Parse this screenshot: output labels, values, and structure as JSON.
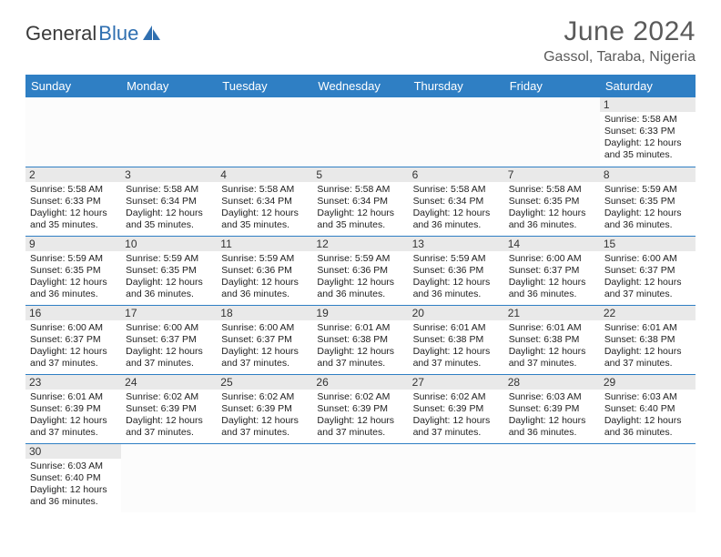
{
  "brand": {
    "part1": "General",
    "part2": "Blue"
  },
  "title": "June 2024",
  "location": "Gassol, Taraba, Nigeria",
  "colors": {
    "header_bg": "#2f7fc4",
    "header_text": "#ffffff",
    "daynum_bg": "#e9e9e9",
    "row_border": "#2f7fc4",
    "logo_blue": "#2f6fb0",
    "title_color": "#5a5a5a"
  },
  "dow": [
    "Sunday",
    "Monday",
    "Tuesday",
    "Wednesday",
    "Thursday",
    "Friday",
    "Saturday"
  ],
  "weeks": [
    [
      null,
      null,
      null,
      null,
      null,
      null,
      {
        "n": "1",
        "sr": "5:58 AM",
        "ss": "6:33 PM",
        "dl": "12 hours and 35 minutes."
      }
    ],
    [
      {
        "n": "2",
        "sr": "5:58 AM",
        "ss": "6:33 PM",
        "dl": "12 hours and 35 minutes."
      },
      {
        "n": "3",
        "sr": "5:58 AM",
        "ss": "6:34 PM",
        "dl": "12 hours and 35 minutes."
      },
      {
        "n": "4",
        "sr": "5:58 AM",
        "ss": "6:34 PM",
        "dl": "12 hours and 35 minutes."
      },
      {
        "n": "5",
        "sr": "5:58 AM",
        "ss": "6:34 PM",
        "dl": "12 hours and 35 minutes."
      },
      {
        "n": "6",
        "sr": "5:58 AM",
        "ss": "6:34 PM",
        "dl": "12 hours and 36 minutes."
      },
      {
        "n": "7",
        "sr": "5:58 AM",
        "ss": "6:35 PM",
        "dl": "12 hours and 36 minutes."
      },
      {
        "n": "8",
        "sr": "5:59 AM",
        "ss": "6:35 PM",
        "dl": "12 hours and 36 minutes."
      }
    ],
    [
      {
        "n": "9",
        "sr": "5:59 AM",
        "ss": "6:35 PM",
        "dl": "12 hours and 36 minutes."
      },
      {
        "n": "10",
        "sr": "5:59 AM",
        "ss": "6:35 PM",
        "dl": "12 hours and 36 minutes."
      },
      {
        "n": "11",
        "sr": "5:59 AM",
        "ss": "6:36 PM",
        "dl": "12 hours and 36 minutes."
      },
      {
        "n": "12",
        "sr": "5:59 AM",
        "ss": "6:36 PM",
        "dl": "12 hours and 36 minutes."
      },
      {
        "n": "13",
        "sr": "5:59 AM",
        "ss": "6:36 PM",
        "dl": "12 hours and 36 minutes."
      },
      {
        "n": "14",
        "sr": "6:00 AM",
        "ss": "6:37 PM",
        "dl": "12 hours and 36 minutes."
      },
      {
        "n": "15",
        "sr": "6:00 AM",
        "ss": "6:37 PM",
        "dl": "12 hours and 37 minutes."
      }
    ],
    [
      {
        "n": "16",
        "sr": "6:00 AM",
        "ss": "6:37 PM",
        "dl": "12 hours and 37 minutes."
      },
      {
        "n": "17",
        "sr": "6:00 AM",
        "ss": "6:37 PM",
        "dl": "12 hours and 37 minutes."
      },
      {
        "n": "18",
        "sr": "6:00 AM",
        "ss": "6:37 PM",
        "dl": "12 hours and 37 minutes."
      },
      {
        "n": "19",
        "sr": "6:01 AM",
        "ss": "6:38 PM",
        "dl": "12 hours and 37 minutes."
      },
      {
        "n": "20",
        "sr": "6:01 AM",
        "ss": "6:38 PM",
        "dl": "12 hours and 37 minutes."
      },
      {
        "n": "21",
        "sr": "6:01 AM",
        "ss": "6:38 PM",
        "dl": "12 hours and 37 minutes."
      },
      {
        "n": "22",
        "sr": "6:01 AM",
        "ss": "6:38 PM",
        "dl": "12 hours and 37 minutes."
      }
    ],
    [
      {
        "n": "23",
        "sr": "6:01 AM",
        "ss": "6:39 PM",
        "dl": "12 hours and 37 minutes."
      },
      {
        "n": "24",
        "sr": "6:02 AM",
        "ss": "6:39 PM",
        "dl": "12 hours and 37 minutes."
      },
      {
        "n": "25",
        "sr": "6:02 AM",
        "ss": "6:39 PM",
        "dl": "12 hours and 37 minutes."
      },
      {
        "n": "26",
        "sr": "6:02 AM",
        "ss": "6:39 PM",
        "dl": "12 hours and 37 minutes."
      },
      {
        "n": "27",
        "sr": "6:02 AM",
        "ss": "6:39 PM",
        "dl": "12 hours and 37 minutes."
      },
      {
        "n": "28",
        "sr": "6:03 AM",
        "ss": "6:39 PM",
        "dl": "12 hours and 36 minutes."
      },
      {
        "n": "29",
        "sr": "6:03 AM",
        "ss": "6:40 PM",
        "dl": "12 hours and 36 minutes."
      }
    ],
    [
      {
        "n": "30",
        "sr": "6:03 AM",
        "ss": "6:40 PM",
        "dl": "12 hours and 36 minutes."
      },
      null,
      null,
      null,
      null,
      null,
      null
    ]
  ],
  "labels": {
    "sunrise": "Sunrise: ",
    "sunset": "Sunset: ",
    "daylight": "Daylight: "
  }
}
